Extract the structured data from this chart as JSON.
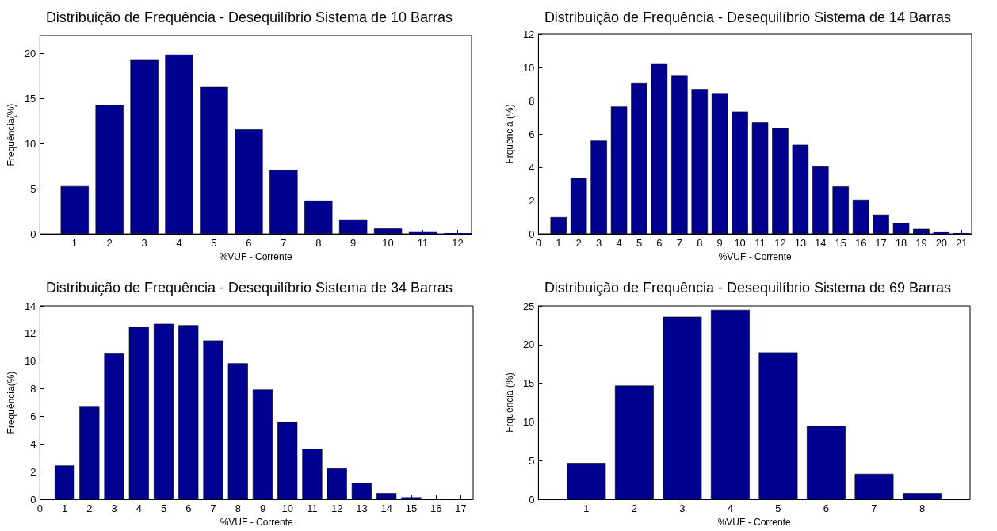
{
  "chart_data": [
    {
      "type": "bar",
      "title": "Distribuição de Frequência - Desequilíbrio Sistema de 10 Barras",
      "xlabel": "%VUF - Corrente",
      "ylabel": "Frequência(%)",
      "color": "#000090",
      "x": [
        1,
        2,
        3,
        4,
        5,
        6,
        7,
        8,
        9,
        10,
        11,
        12
      ],
      "values": [
        5.3,
        14.3,
        19.3,
        19.9,
        16.3,
        11.6,
        7.1,
        3.7,
        1.6,
        0.6,
        0.2,
        0.1
      ],
      "xlim": [
        0,
        12.4
      ],
      "xticks": [
        1,
        2,
        3,
        4,
        5,
        6,
        7,
        8,
        9,
        10,
        11,
        12
      ],
      "ylim": [
        0,
        22
      ],
      "yticks": [
        0,
        5,
        10,
        15,
        20
      ],
      "grid": false
    },
    {
      "type": "bar",
      "title": "Distribuição de Frequência - Desequilíbrio Sistema de 14 Barras",
      "xlabel": "%VUF - Corrente",
      "ylabel": "Frquência (%)",
      "color": "#000090",
      "x": [
        1,
        2,
        3,
        4,
        5,
        6,
        7,
        8,
        9,
        10,
        11,
        12,
        13,
        14,
        15,
        16,
        17,
        18,
        19,
        20,
        21
      ],
      "values": [
        1.0,
        3.35,
        5.6,
        7.65,
        9.05,
        10.2,
        9.5,
        8.7,
        8.45,
        7.35,
        6.7,
        6.35,
        5.35,
        4.05,
        2.85,
        2.05,
        1.15,
        0.65,
        0.3,
        0.1,
        0.05
      ],
      "xlim": [
        0,
        21.5
      ],
      "xticks": [
        0,
        1,
        2,
        3,
        4,
        5,
        6,
        7,
        8,
        9,
        10,
        11,
        12,
        13,
        14,
        15,
        16,
        17,
        18,
        19,
        20,
        21
      ],
      "ylim": [
        0,
        12
      ],
      "yticks": [
        0,
        2,
        4,
        6,
        8,
        10,
        12
      ],
      "grid": false
    },
    {
      "type": "bar",
      "title": "Distribuição de Frequência - Desequilíbrio Sistema de 34 Barras",
      "xlabel": "%VUF - Corrente",
      "ylabel": "Frequência(%)",
      "color": "#000090",
      "x": [
        1,
        2,
        3,
        4,
        5,
        6,
        7,
        8,
        9,
        10,
        11,
        12,
        13,
        14,
        15
      ],
      "values": [
        2.45,
        6.75,
        10.55,
        12.5,
        12.7,
        12.6,
        11.5,
        9.85,
        7.95,
        5.6,
        3.65,
        2.25,
        1.2,
        0.45,
        0.15
      ],
      "xlim": [
        0,
        17.5
      ],
      "xticks": [
        0,
        1,
        2,
        3,
        4,
        5,
        6,
        7,
        8,
        9,
        10,
        11,
        12,
        13,
        14,
        15,
        16,
        17
      ],
      "ylim": [
        0,
        14
      ],
      "yticks": [
        0,
        2,
        4,
        6,
        8,
        10,
        12,
        14
      ],
      "grid": false
    },
    {
      "type": "bar",
      "title": "Distribuição de Frequência - Desequilíbrio Sistema de 69 Barras",
      "xlabel": "%VUF - Corrente",
      "ylabel": "Frquência (%)",
      "color": "#000090",
      "x": [
        1,
        2,
        3,
        4,
        5,
        6,
        7,
        8
      ],
      "values": [
        4.7,
        14.7,
        23.6,
        24.5,
        19.0,
        9.5,
        3.3,
        0.8
      ],
      "xlim": [
        0,
        9
      ],
      "xticks": [
        1,
        2,
        3,
        4,
        5,
        6,
        7,
        8
      ],
      "ylim": [
        0,
        25
      ],
      "yticks": [
        0,
        5,
        10,
        15,
        20,
        25
      ],
      "grid": false
    }
  ]
}
